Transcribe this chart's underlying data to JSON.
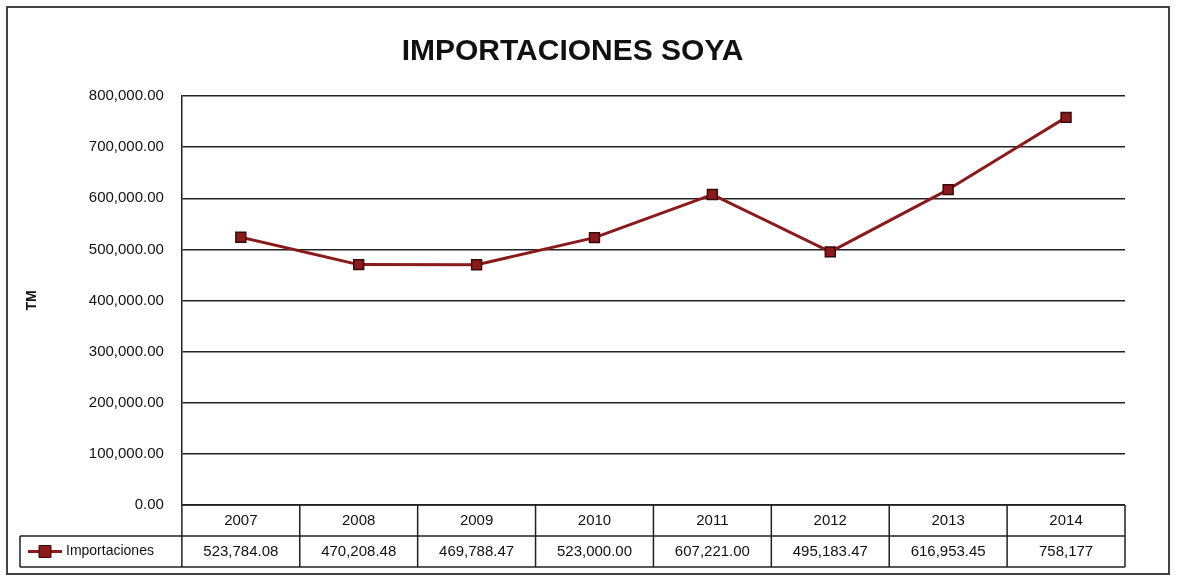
{
  "chart_data": {
    "type": "line",
    "title": "IMPORTACIONES SOYA",
    "ylabel": "TM",
    "categories": [
      "2007",
      "2008",
      "2009",
      "2010",
      "2011",
      "2012",
      "2013",
      "2014"
    ],
    "series": [
      {
        "name": "Importaciones",
        "color": "#8b1a1a",
        "values": [
          523784.08,
          470208.48,
          469788.47,
          523000.0,
          607221.0,
          495183.47,
          616953.45,
          758177
        ],
        "value_labels": [
          "523,784.08",
          "470,208.48",
          "469,788.47",
          "523,000.00",
          "607,221.00",
          "495,183.47",
          "616,953.45",
          "758,177"
        ]
      }
    ],
    "ylim": [
      0,
      800000
    ],
    "yticks": [
      {
        "value": 0,
        "label": "0.00"
      },
      {
        "value": 100000,
        "label": "100,000.00"
      },
      {
        "value": 200000,
        "label": "200,000.00"
      },
      {
        "value": 300000,
        "label": "300,000.00"
      },
      {
        "value": 400000,
        "label": "400,000.00"
      },
      {
        "value": 500000,
        "label": "500,000.00"
      },
      {
        "value": 600000,
        "label": "600,000.00"
      },
      {
        "value": 700000,
        "label": "700,000.00"
      },
      {
        "value": 800000,
        "label": "800,000.00"
      }
    ],
    "grid": "y",
    "legend": "bottom",
    "marker": "square",
    "line_style": "solid"
  }
}
